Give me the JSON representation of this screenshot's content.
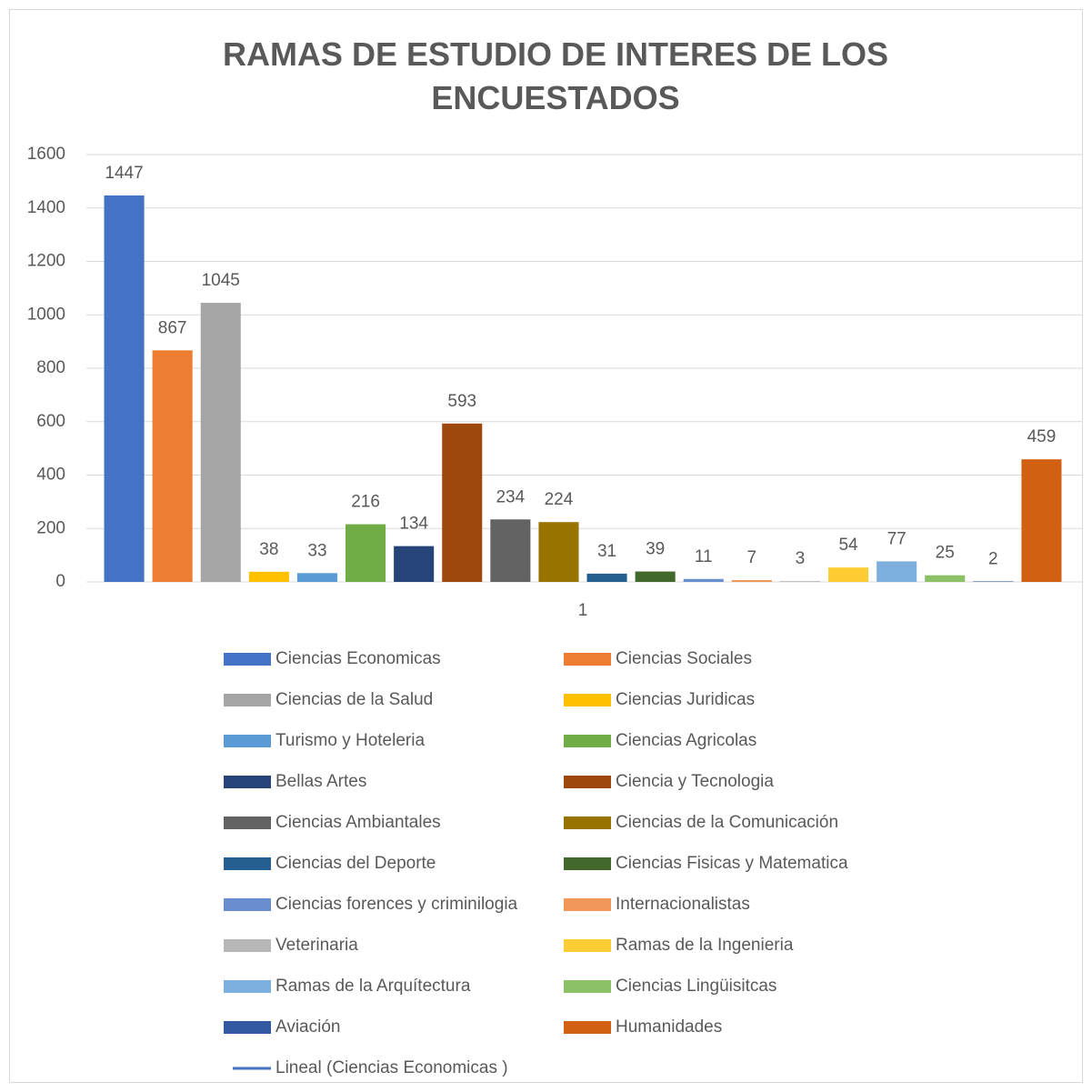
{
  "chart_data": {
    "type": "bar",
    "title": "RAMAS DE ESTUDIO DE INTERES DE LOS ENCUESTADOS",
    "categories": [
      "1"
    ],
    "series": [
      {
        "name": "Ciencias Economicas",
        "color": "#4472c4",
        "values": [
          1447
        ]
      },
      {
        "name": "Ciencias Sociales",
        "color": "#ed7d31",
        "values": [
          867
        ]
      },
      {
        "name": "Ciencias de la Salud",
        "color": "#a5a5a5",
        "values": [
          1045
        ]
      },
      {
        "name": "Ciencias Juridicas",
        "color": "#ffc000",
        "values": [
          38
        ]
      },
      {
        "name": "Turismo y Hoteleria",
        "color": "#5b9bd5",
        "values": [
          33
        ]
      },
      {
        "name": "Ciencias Agricolas",
        "color": "#70ad47",
        "values": [
          216
        ]
      },
      {
        "name": "Bellas Artes",
        "color": "#264478",
        "values": [
          134
        ]
      },
      {
        "name": "Ciencia y Tecnologia",
        "color": "#9e480e",
        "values": [
          593
        ]
      },
      {
        "name": "Ciencias Ambiantales",
        "color": "#636363",
        "values": [
          234
        ]
      },
      {
        "name": "Ciencias de la Comunicación",
        "color": "#997300",
        "values": [
          224
        ]
      },
      {
        "name": "Ciencias del Deporte",
        "color": "#255e91",
        "values": [
          31
        ]
      },
      {
        "name": "Ciencias Fisicas y Matematica",
        "color": "#43682b",
        "values": [
          39
        ]
      },
      {
        "name": "Ciencias forences y criminilogia",
        "color": "#698ed0",
        "values": [
          11
        ]
      },
      {
        "name": "Internacionalistas",
        "color": "#f1975a",
        "values": [
          7
        ]
      },
      {
        "name": "Veterinaria",
        "color": "#b7b7b7",
        "values": [
          3
        ]
      },
      {
        "name": "Ramas de la Ingenieria",
        "color": "#ffcd33",
        "values": [
          54
        ]
      },
      {
        "name": "Ramas de la Arquítectura",
        "color": "#7cafdd",
        "values": [
          77
        ]
      },
      {
        "name": "Ciencias Lingüisitcas",
        "color": "#8cc168",
        "values": [
          25
        ]
      },
      {
        "name": "Aviación",
        "color": "#335aa1",
        "values": [
          2
        ]
      },
      {
        "name": "Humanidades",
        "color": "#d26012",
        "values": [
          459
        ]
      }
    ],
    "trendline": {
      "name": "Lineal (Ciencias Economicas )",
      "color": "#4472c4"
    },
    "ylim": [
      0,
      1600
    ],
    "yticks": [
      0,
      200,
      400,
      600,
      800,
      1000,
      1200,
      1400,
      1600
    ],
    "grid": true,
    "legend": "bottom"
  }
}
